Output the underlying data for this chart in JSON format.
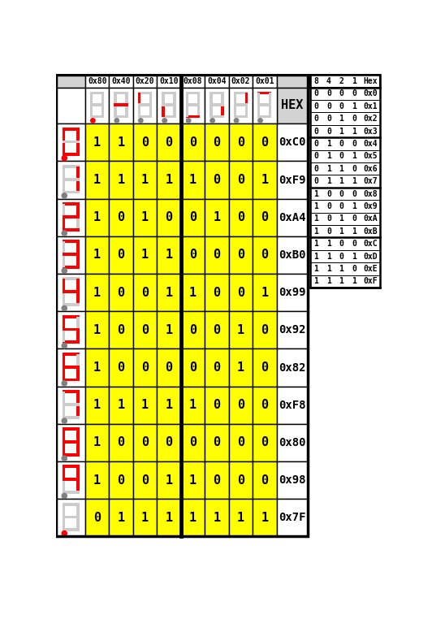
{
  "col_headers": [
    "0x80",
    "0x40",
    "0x20",
    "0x10",
    "0x08",
    "0x04",
    "0x02",
    "0x01"
  ],
  "row_hex": [
    "0xC0",
    "0xF9",
    "0xA4",
    "0xB0",
    "0x99",
    "0x92",
    "0x82",
    "0xF8",
    "0x80",
    "0x98",
    "0x7F"
  ],
  "row_data": [
    [
      1,
      1,
      0,
      0,
      0,
      0,
      0,
      0
    ],
    [
      1,
      1,
      1,
      1,
      1,
      0,
      0,
      1
    ],
    [
      1,
      0,
      1,
      0,
      0,
      1,
      0,
      0
    ],
    [
      1,
      0,
      1,
      1,
      0,
      0,
      0,
      0
    ],
    [
      1,
      0,
      0,
      1,
      1,
      0,
      0,
      1
    ],
    [
      1,
      0,
      0,
      1,
      0,
      0,
      1,
      0
    ],
    [
      1,
      0,
      0,
      0,
      0,
      0,
      1,
      0
    ],
    [
      1,
      1,
      1,
      1,
      1,
      0,
      0,
      0
    ],
    [
      1,
      0,
      0,
      0,
      0,
      0,
      0,
      0
    ],
    [
      1,
      0,
      0,
      1,
      1,
      0,
      0,
      0
    ],
    [
      0,
      1,
      1,
      1,
      1,
      1,
      1,
      1
    ]
  ],
  "lookup_headers": [
    "8",
    "4",
    "2",
    "1",
    "Hex"
  ],
  "lookup_data": [
    [
      0,
      0,
      0,
      0,
      "0x0"
    ],
    [
      0,
      0,
      0,
      1,
      "0x1"
    ],
    [
      0,
      0,
      1,
      0,
      "0x2"
    ],
    [
      0,
      0,
      1,
      1,
      "0x3"
    ],
    [
      0,
      1,
      0,
      0,
      "0x4"
    ],
    [
      0,
      1,
      0,
      1,
      "0x5"
    ],
    [
      0,
      1,
      1,
      0,
      "0x6"
    ],
    [
      0,
      1,
      1,
      1,
      "0x7"
    ],
    [
      1,
      0,
      0,
      0,
      "0x8"
    ],
    [
      1,
      0,
      0,
      1,
      "0x9"
    ],
    [
      1,
      0,
      1,
      0,
      "0xA"
    ],
    [
      1,
      0,
      1,
      1,
      "0xB"
    ],
    [
      1,
      1,
      0,
      0,
      "0xC"
    ],
    [
      1,
      1,
      0,
      1,
      "0xD"
    ],
    [
      1,
      1,
      1,
      0,
      "0xE"
    ],
    [
      1,
      1,
      1,
      1,
      "0xF"
    ]
  ],
  "yellow": "#FFFF00",
  "red": "#FF0000",
  "gray": "#808080",
  "black": "#000000",
  "white": "#FFFFFF",
  "light_gray": "#D3D3D3",
  "dot_colors": {
    "0xC0": "red",
    "0xF9": "gray",
    "0xA4": "gray",
    "0xB0": "gray",
    "0x99": "gray",
    "0x92": "gray",
    "0x82": "gray",
    "0xF8": "gray",
    "0x80": "gray",
    "0x98": "gray",
    "0x7F": "red"
  },
  "header_dot_colors": [
    "red",
    "gray",
    "gray",
    "gray",
    "gray",
    "gray",
    "gray",
    "gray"
  ],
  "header_seg_bits": [
    0,
    64,
    32,
    16,
    8,
    4,
    2,
    1
  ],
  "seg_off_color": "#CCCCCC",
  "lookup_group_thick": [
    0,
    4,
    8,
    12,
    16
  ]
}
